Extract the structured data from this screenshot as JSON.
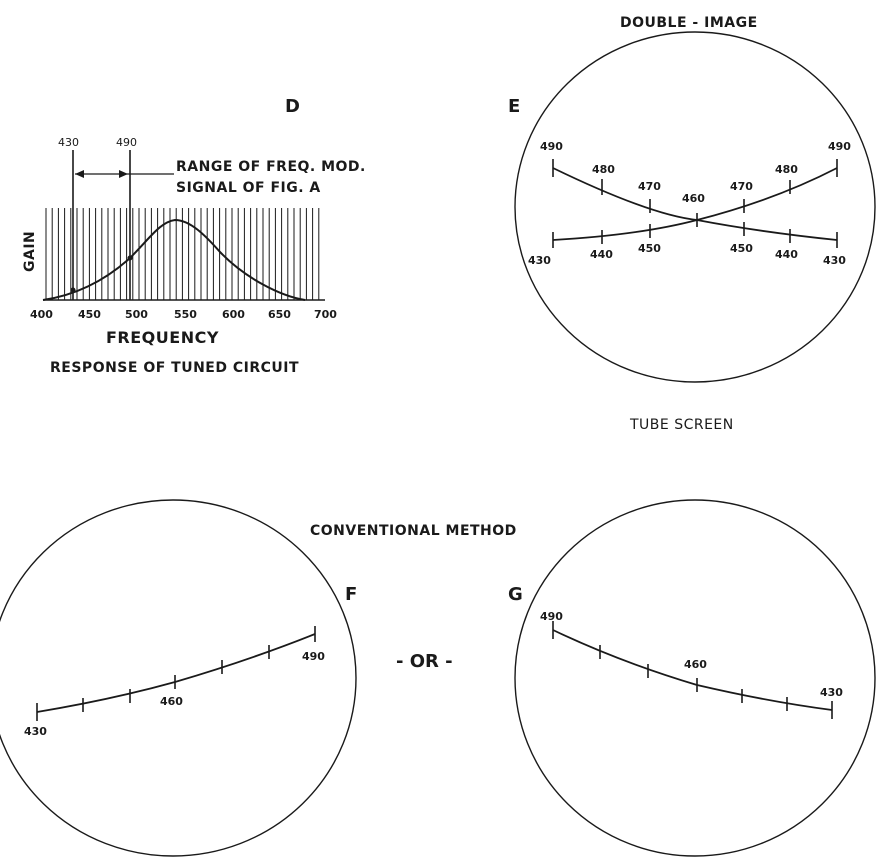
{
  "panel_d": {
    "letter": "D",
    "marker_low": "430",
    "marker_high": "490",
    "range_line1": "RANGE OF FREQ. MOD.",
    "range_line2": "SIGNAL OF FIG. A",
    "ylabel": "GAIN",
    "xlabel": "FREQUENCY",
    "caption": "RESPONSE OF TUNED CIRCUIT",
    "x_ticks": [
      "400",
      "450",
      "500",
      "550",
      "600",
      "650",
      "700"
    ]
  },
  "panel_e": {
    "title": "DOUBLE - IMAGE",
    "letter": "E",
    "caption": "TUBE SCREEN",
    "trace_down_labels": [
      "490",
      "480",
      "470",
      "460",
      "450",
      "440",
      "430"
    ],
    "trace_up_labels": [
      "430",
      "440",
      "450",
      "460",
      "470",
      "480",
      "490"
    ],
    "bottom_labels": [
      "430",
      "440",
      "450",
      "450",
      "440",
      "430"
    ],
    "top_labels": [
      "490",
      "480",
      "470",
      "460",
      "470",
      "480",
      "490"
    ]
  },
  "conventional": {
    "title": "CONVENTIONAL METHOD",
    "or_label": "- OR -"
  },
  "panel_f": {
    "letter": "F",
    "labels": [
      "430",
      "460",
      "490"
    ]
  },
  "panel_g": {
    "letter": "G",
    "labels": [
      "490",
      "460",
      "430"
    ]
  }
}
